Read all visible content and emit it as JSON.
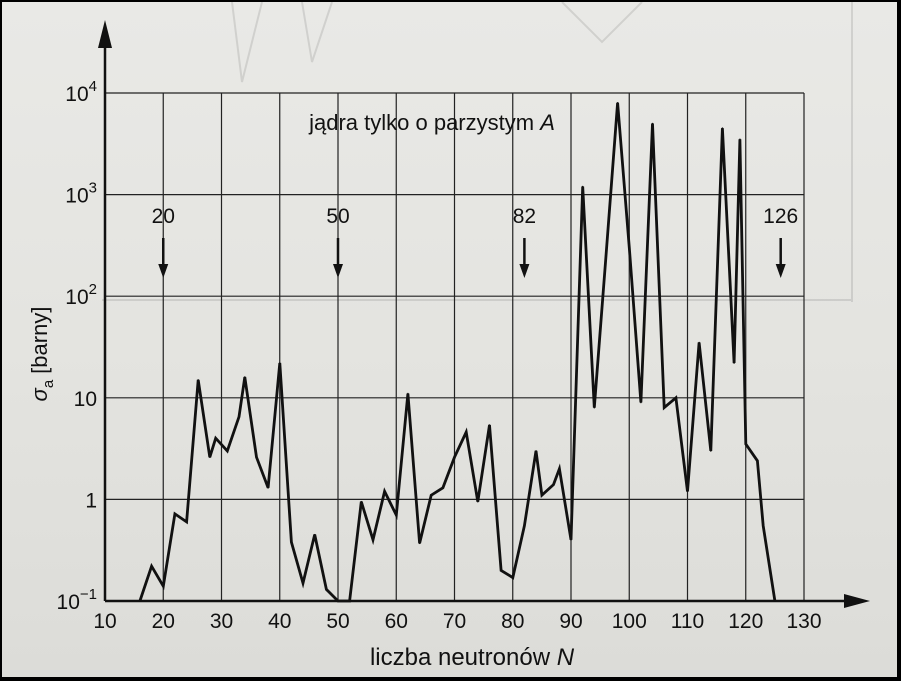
{
  "chart_data": {
    "type": "line",
    "title": "jądra tylko o parzystym",
    "title_italic_var": "A",
    "xlabel": "liczba neutronów",
    "xlabel_var": "N",
    "ylabel_symbol": "σ",
    "ylabel_subscript": "a",
    "ylabel_unit": "[barny]",
    "xlim": [
      10,
      130
    ],
    "ylim": [
      0.1,
      10000
    ],
    "y_scale": "log",
    "grid": true,
    "x_ticks": [
      "10",
      "20",
      "30",
      "40",
      "50",
      "60",
      "70",
      "80",
      "90",
      "100",
      "110",
      "120",
      "130"
    ],
    "y_ticks": [
      {
        "value": 0.1,
        "base": "10",
        "exp": "−1",
        "plain": ""
      },
      {
        "value": 1,
        "base": "",
        "exp": "",
        "plain": "1"
      },
      {
        "value": 10,
        "base": "",
        "exp": "",
        "plain": "10"
      },
      {
        "value": 100,
        "base": "10",
        "exp": "2",
        "plain": ""
      },
      {
        "value": 1000,
        "base": "10",
        "exp": "3",
        "plain": ""
      },
      {
        "value": 10000,
        "base": "10",
        "exp": "4",
        "plain": ""
      }
    ],
    "magic_numbers": [
      {
        "label": "20",
        "n": 20
      },
      {
        "label": "50",
        "n": 50
      },
      {
        "label": "82",
        "n": 82
      },
      {
        "label": "126",
        "n": 126
      }
    ],
    "series": [
      {
        "points": [
          [
            16,
            0.1
          ],
          [
            18,
            0.22
          ],
          [
            20,
            0.14
          ],
          [
            22,
            0.72
          ],
          [
            24,
            0.6
          ],
          [
            26,
            15
          ],
          [
            28,
            2.6
          ],
          [
            29,
            4.0
          ],
          [
            31,
            3.0
          ],
          [
            33,
            6.5
          ],
          [
            34,
            16
          ],
          [
            36,
            2.6
          ],
          [
            38,
            1.3
          ],
          [
            40,
            22
          ],
          [
            42,
            0.38
          ],
          [
            44,
            0.15
          ],
          [
            46,
            0.45
          ],
          [
            48,
            0.13
          ],
          [
            50,
            0.1
          ],
          [
            52,
            0.1
          ],
          [
            54,
            0.95
          ],
          [
            56,
            0.4
          ],
          [
            58,
            1.2
          ],
          [
            60,
            0.7
          ],
          [
            62,
            11
          ],
          [
            64,
            0.37
          ],
          [
            66,
            1.1
          ],
          [
            68,
            1.3
          ],
          [
            70,
            2.6
          ],
          [
            72,
            4.6
          ],
          [
            74,
            0.95
          ],
          [
            76,
            5.4
          ],
          [
            78,
            0.2
          ],
          [
            80,
            0.17
          ],
          [
            82,
            0.55
          ],
          [
            84,
            3.0
          ],
          [
            85,
            1.1
          ],
          [
            87,
            1.4
          ],
          [
            88,
            2.0
          ],
          [
            90,
            0.4
          ],
          [
            92,
            1200
          ],
          [
            94,
            8
          ],
          [
            96,
            250
          ],
          [
            98,
            8000
          ],
          [
            100,
            300
          ],
          [
            102,
            9
          ],
          [
            104,
            5000
          ],
          [
            106,
            8
          ],
          [
            108,
            10
          ],
          [
            110,
            1.2
          ],
          [
            112,
            35
          ],
          [
            114,
            3.0
          ],
          [
            116,
            4500
          ],
          [
            118,
            22
          ],
          [
            119,
            3500
          ],
          [
            120,
            3.5
          ],
          [
            122,
            2.4
          ],
          [
            123,
            0.55
          ],
          [
            125,
            0.1
          ]
        ]
      }
    ]
  }
}
